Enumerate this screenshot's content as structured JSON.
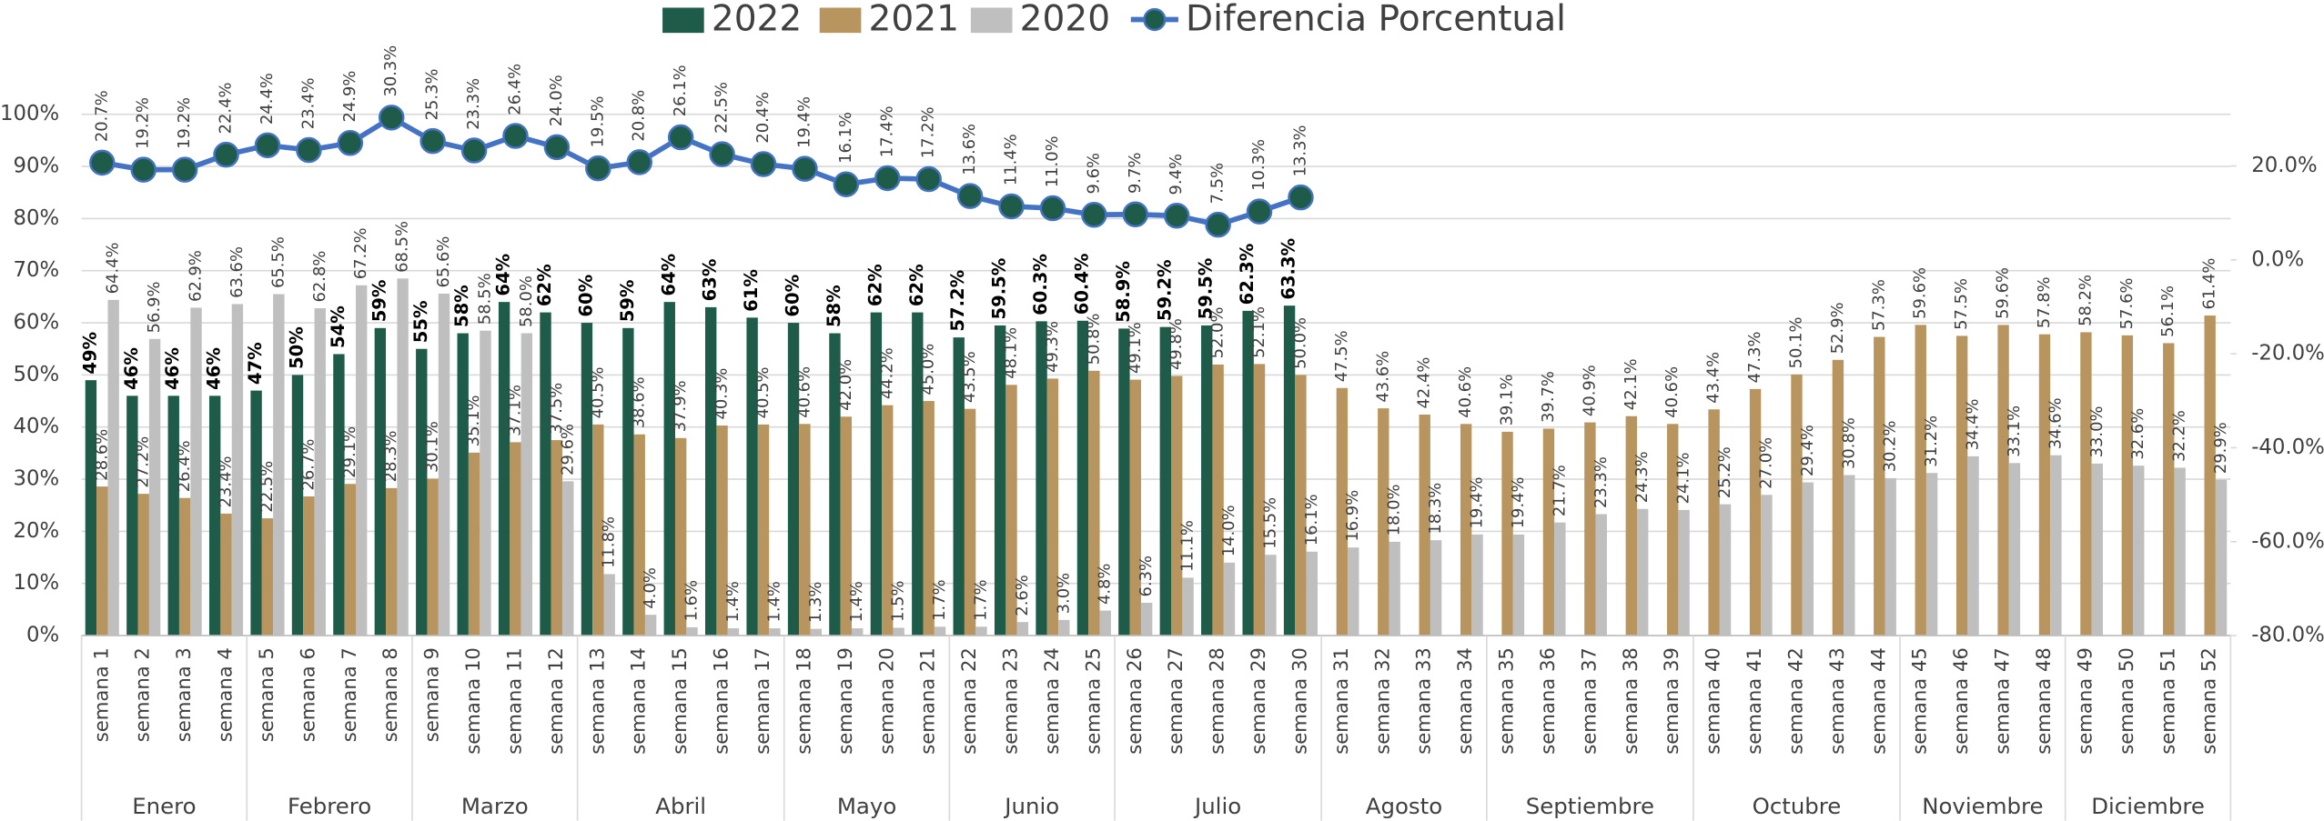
{
  "chart_data": {
    "type": "bar_line",
    "categories": [
      "semana 1",
      "semana 2",
      "semana 3",
      "semana 4",
      "semana 5",
      "semana 6",
      "semana 7",
      "semana 8",
      "semana 9",
      "semana 10",
      "semana 11",
      "semana 12",
      "semana 13",
      "semana 14",
      "semana 15",
      "semana 16",
      "semana 17",
      "semana 18",
      "semana 19",
      "semana 20",
      "semana 21",
      "semana 22",
      "semana 23",
      "semana 24",
      "semana 25",
      "semana 26",
      "semana 27",
      "semana 28",
      "semana 29",
      "semana 30",
      "semana 31",
      "semana 32",
      "semana 33",
      "semana 34",
      "semana 35",
      "semana 36",
      "semana 37",
      "semana 38",
      "semana 39",
      "semana 40",
      "semana 41",
      "semana 42",
      "semana 43",
      "semana 44",
      "semana 45",
      "semana 46",
      "semana 47",
      "semana 48",
      "semana 49",
      "semana 50",
      "semana 51",
      "semana 52"
    ],
    "groups": [
      {
        "label": "Enero",
        "count": 4
      },
      {
        "label": "Febrero",
        "count": 4
      },
      {
        "label": "Marzo",
        "count": 4
      },
      {
        "label": "Abril",
        "count": 5
      },
      {
        "label": "Mayo",
        "count": 4
      },
      {
        "label": "Junio",
        "count": 4
      },
      {
        "label": "Julio",
        "count": 5
      },
      {
        "label": "Agosto",
        "count": 4
      },
      {
        "label": "Septiembre",
        "count": 5
      },
      {
        "label": "Octubre",
        "count": 5
      },
      {
        "label": "Noviembre",
        "count": 4
      },
      {
        "label": "Diciembre",
        "count": 4
      }
    ],
    "series": [
      {
        "name": "2022",
        "type": "bar",
        "color": "#1e5b48",
        "bold_labels": true,
        "values": [
          49,
          46,
          46,
          46,
          47,
          50,
          54,
          59,
          55,
          58,
          64,
          62,
          60,
          59,
          64,
          63,
          61,
          60,
          58,
          62,
          62,
          57.2,
          59.5,
          60.3,
          60.4,
          58.9,
          59.2,
          59.5,
          62.3,
          63.3,
          null,
          null,
          null,
          null,
          null,
          null,
          null,
          null,
          null,
          null,
          null,
          null,
          null,
          null,
          null,
          null,
          null,
          null,
          null,
          null,
          null,
          null
        ],
        "value_labels": [
          "49%",
          "46%",
          "46%",
          "46%",
          "47%",
          "50%",
          "54%",
          "59%",
          "55%",
          "58%",
          "64%",
          "62%",
          "60%",
          "59%",
          "64%",
          "63%",
          "61%",
          "60%",
          "58%",
          "62%",
          "62%",
          "57.2%",
          "59.5%",
          "60.3%",
          "60.4%",
          "58.9%",
          "59.2%",
          "59.5%",
          "62.3%",
          "63.3%",
          null,
          null,
          null,
          null,
          null,
          null,
          null,
          null,
          null,
          null,
          null,
          null,
          null,
          null,
          null,
          null,
          null,
          null,
          null,
          null,
          null,
          null
        ]
      },
      {
        "name": "2021",
        "type": "bar",
        "color": "#b8955e",
        "bold_labels": false,
        "values": [
          28.6,
          27.2,
          26.4,
          23.4,
          22.5,
          26.7,
          29.1,
          28.3,
          30.1,
          35.1,
          37.1,
          37.5,
          40.5,
          38.6,
          37.9,
          40.3,
          40.5,
          40.6,
          42.0,
          44.2,
          45.0,
          43.5,
          48.1,
          49.3,
          50.8,
          49.1,
          49.8,
          52.0,
          52.1,
          50.0,
          47.5,
          43.6,
          42.4,
          40.6,
          39.1,
          39.7,
          40.9,
          42.1,
          40.6,
          43.4,
          47.3,
          50.1,
          52.9,
          57.3,
          59.6,
          57.5,
          59.6,
          57.8,
          58.2,
          57.6,
          56.1,
          61.4
        ],
        "value_labels": [
          "28.6%",
          "27.2%",
          "26.4%",
          "23.4%",
          "22.5%",
          "26.7%",
          "29.1%",
          "28.3%",
          "30.1%",
          "35.1%",
          "37.1%",
          "37.5%",
          "40.5%",
          "38.6%",
          "37.9%",
          "40.3%",
          "40.5%",
          "40.6%",
          "42.0%",
          "44.2%",
          "45.0%",
          "43.5%",
          "48.1%",
          "49.3%",
          "50.8%",
          "49.1%",
          "49.8%",
          "52.0%",
          "52.1%",
          "50.0%",
          "47.5%",
          "43.6%",
          "42.4%",
          "40.6%",
          "39.1%",
          "39.7%",
          "40.9%",
          "42.1%",
          "40.6%",
          "43.4%",
          "47.3%",
          "50.1%",
          "52.9%",
          "57.3%",
          "59.6%",
          "57.5%",
          "59.6%",
          "57.8%",
          "58.2%",
          "57.6%",
          "56.1%",
          "61.4%"
        ]
      },
      {
        "name": "2020",
        "type": "bar",
        "color": "#bfbfbf",
        "bold_labels": false,
        "values": [
          64.4,
          56.9,
          62.9,
          63.6,
          65.5,
          62.8,
          67.2,
          68.5,
          65.6,
          58.5,
          58.0,
          29.6,
          11.8,
          4.0,
          1.6,
          1.4,
          1.4,
          1.3,
          1.4,
          1.5,
          1.7,
          1.7,
          2.6,
          3.0,
          4.8,
          6.3,
          11.1,
          14.0,
          15.5,
          16.1,
          16.9,
          18.0,
          18.3,
          19.4,
          19.4,
          21.7,
          23.3,
          24.3,
          24.1,
          25.2,
          27.0,
          29.4,
          30.8,
          30.2,
          31.2,
          34.4,
          33.1,
          34.6,
          33.0,
          32.6,
          32.2,
          29.9
        ],
        "value_labels": [
          "64.4%",
          "56.9%",
          "62.9%",
          "63.6%",
          "65.5%",
          "62.8%",
          "67.2%",
          "68.5%",
          "65.6%",
          "58.5%",
          "58.0%",
          "29.6%",
          "11.8%",
          "4.0%",
          "1.6%",
          "1.4%",
          "1.4%",
          "1.3%",
          "1.4%",
          "1.5%",
          "1.7%",
          "1.7%",
          "2.6%",
          "3.0%",
          "4.8%",
          "6.3%",
          "11.1%",
          "14.0%",
          "15.5%",
          "16.1%",
          "16.9%",
          "18.0%",
          "18.3%",
          "19.4%",
          "19.4%",
          "21.7%",
          "23.3%",
          "24.3%",
          "24.1%",
          "25.2%",
          "27.0%",
          "29.4%",
          "30.8%",
          "30.2%",
          "31.2%",
          "34.4%",
          "33.1%",
          "34.6%",
          "33.0%",
          "32.6%",
          "32.2%",
          "29.9%"
        ]
      },
      {
        "name": "Diferencia Porcentual",
        "type": "line",
        "axis": "y2",
        "color": "#4472c4",
        "marker_color": "#1e5b48",
        "bold_labels": false,
        "values": [
          20.7,
          19.2,
          19.2,
          22.4,
          24.4,
          23.4,
          24.9,
          30.3,
          25.3,
          23.3,
          26.4,
          24.0,
          19.5,
          20.8,
          26.1,
          22.5,
          20.4,
          19.4,
          16.1,
          17.4,
          17.2,
          13.6,
          11.4,
          11.0,
          9.6,
          9.7,
          9.4,
          7.5,
          10.3,
          13.3,
          null,
          null,
          null,
          null,
          null,
          null,
          null,
          null,
          null,
          null,
          null,
          null,
          null,
          null,
          null,
          null,
          null,
          null,
          null,
          null,
          null,
          null
        ],
        "value_labels": [
          "20.7%",
          "19.2%",
          "19.2%",
          "22.4%",
          "24.4%",
          "23.4%",
          "24.9%",
          "30.3%",
          "25.3%",
          "23.3%",
          "26.4%",
          "24.0%",
          "19.5%",
          "20.8%",
          "26.1%",
          "22.5%",
          "20.4%",
          "19.4%",
          "16.1%",
          "17.4%",
          "17.2%",
          "13.6%",
          "11.4%",
          "11.0%",
          "9.6%",
          "9.7%",
          "9.4%",
          "7.5%",
          "10.3%",
          "13.3%",
          null,
          null,
          null,
          null,
          null,
          null,
          null,
          null,
          null,
          null,
          null,
          null,
          null,
          null,
          null,
          null,
          null,
          null,
          null,
          null,
          null,
          null
        ]
      }
    ],
    "ylim": [
      0,
      100
    ],
    "yticks": [
      {
        "value": 0,
        "label": "0%"
      },
      {
        "value": 10,
        "label": "10%"
      },
      {
        "value": 20,
        "label": "20%"
      },
      {
        "value": 30,
        "label": "30%"
      },
      {
        "value": 40,
        "label": "40%"
      },
      {
        "value": 50,
        "label": "50%"
      },
      {
        "value": 60,
        "label": "60%"
      },
      {
        "value": 70,
        "label": "70%"
      },
      {
        "value": 80,
        "label": "80%"
      },
      {
        "value": 90,
        "label": "90%"
      },
      {
        "value": 100,
        "label": "100%"
      }
    ],
    "y2lim": [
      -80,
      31
    ],
    "y2ticks": [
      {
        "value": 20,
        "label": "20.0%"
      },
      {
        "value": 0,
        "label": "0.0%"
      },
      {
        "value": -20,
        "label": "-20.0%"
      },
      {
        "value": -40,
        "label": "-40.0%"
      },
      {
        "value": -60,
        "label": "-60.0%"
      },
      {
        "value": -80,
        "label": "-80.0%"
      }
    ],
    "grid": true,
    "legend": "top"
  }
}
